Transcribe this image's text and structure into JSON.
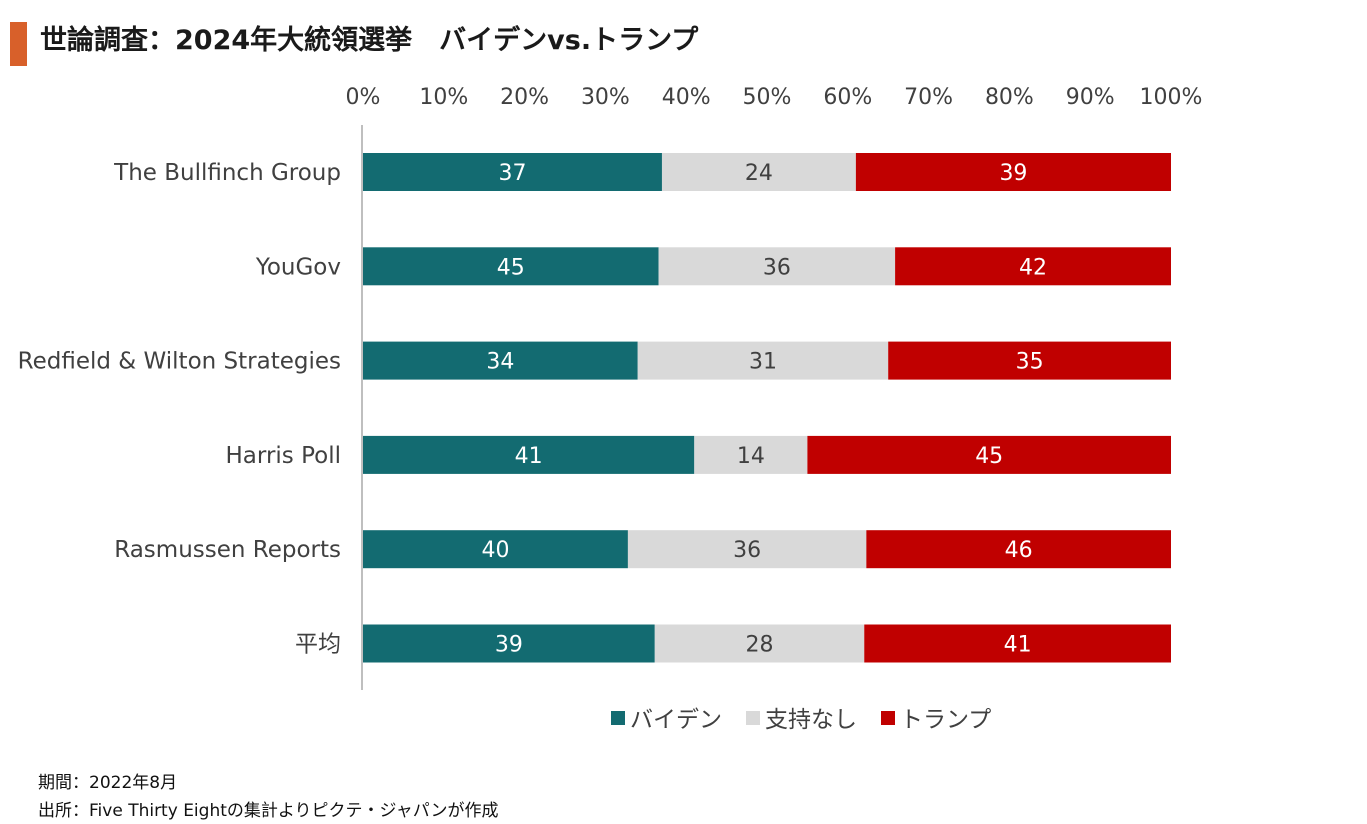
{
  "title": "世論調査：2024年大統領選挙　バイデンvs.トランプ",
  "accent_color": "#D8602A",
  "footer": {
    "period": "期間：2022年8月",
    "source": "出所：Five Thirty Eightの集計よりピクテ・ジャパンが作成"
  },
  "chart_data": {
    "type": "bar",
    "orientation": "horizontal",
    "stacked": "100%",
    "categories": [
      "The Bullfinch Group",
      "YouGov",
      "Redfield & Wilton Strategies",
      "Harris Poll",
      "Rasmussen Reports",
      "平均"
    ],
    "series": [
      {
        "name": "バイデン",
        "color": "#136B71",
        "values": [
          37,
          45,
          34,
          41,
          40,
          39
        ]
      },
      {
        "name": "支持なし",
        "color": "#D9D9D9",
        "values": [
          24,
          36,
          31,
          14,
          36,
          28
        ]
      },
      {
        "name": "トランプ",
        "color": "#C00000",
        "values": [
          39,
          42,
          35,
          45,
          46,
          41
        ]
      }
    ],
    "xlim": [
      0,
      100
    ],
    "x_ticks": [
      "0%",
      "10%",
      "20%",
      "30%",
      "40%",
      "50%",
      "60%",
      "70%",
      "80%",
      "90%",
      "100%"
    ],
    "axis_position": "top",
    "legend_position": "bottom",
    "grid": false
  }
}
